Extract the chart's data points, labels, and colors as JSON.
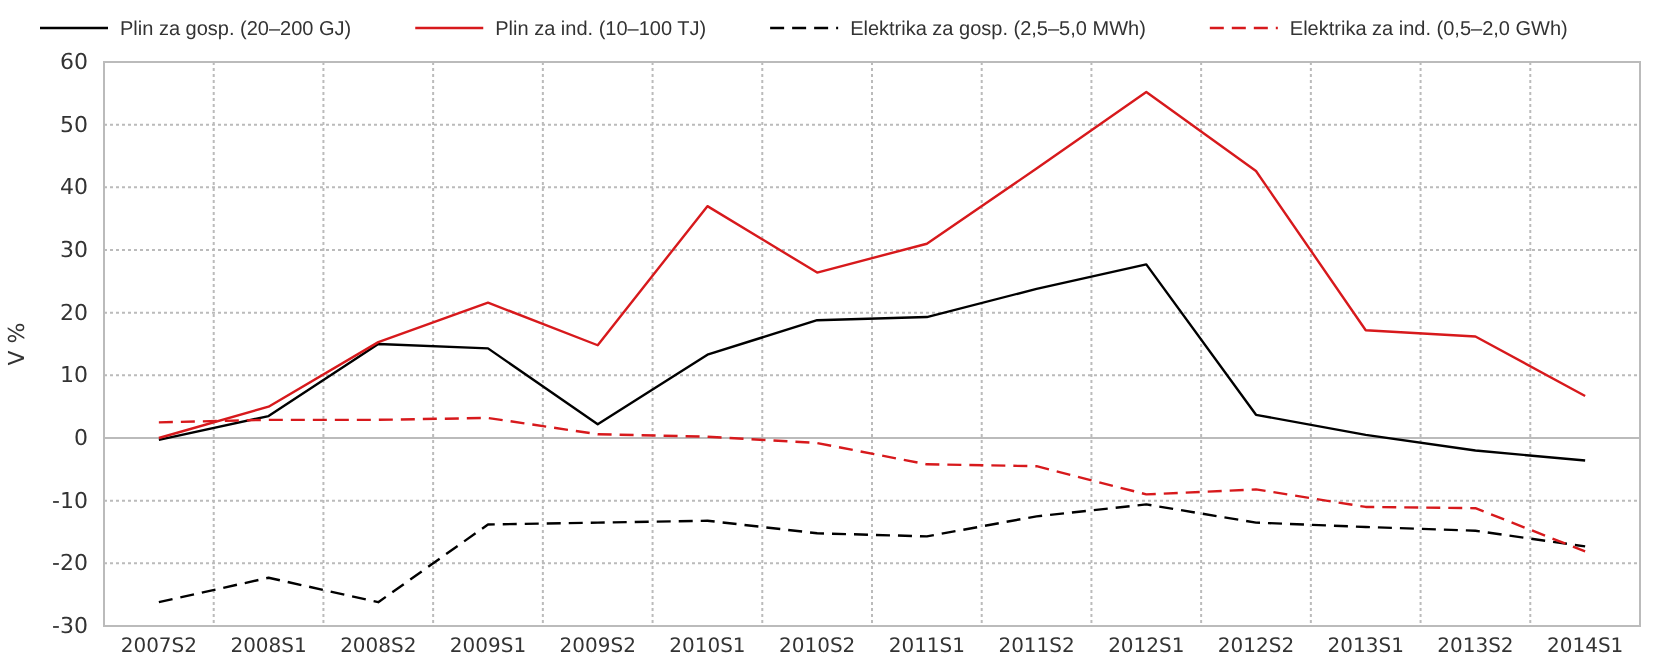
{
  "chart_data": {
    "type": "line",
    "ylabel": "V %",
    "categories": [
      "2007S2",
      "2008S1",
      "2008S2",
      "2009S1",
      "2009S2",
      "2010S1",
      "2010S2",
      "2011S1",
      "2011S2",
      "2012S1",
      "2012S2",
      "2013S1",
      "2013S2",
      "2014S1"
    ],
    "series": [
      {
        "name": "Plin za gosp. (20–200 GJ)",
        "color": "#000000",
        "line_style": "solid",
        "values": [
          -0.3,
          3.5,
          15,
          14.3,
          2.2,
          13.3,
          18.8,
          19.3,
          23.8,
          27.7,
          3.7,
          0.5,
          -2,
          -3.6
        ]
      },
      {
        "name": "Plin za ind. (10–100 TJ)",
        "color": "#d7191c",
        "line_style": "solid",
        "values": [
          0,
          5,
          15.3,
          21.6,
          14.8,
          37,
          26.4,
          31,
          43,
          55.2,
          42.6,
          17.2,
          16.2,
          6.7
        ]
      },
      {
        "name": "Elektrika za gosp. (2,5–5,0 MWh)",
        "color": "#000000",
        "line_style": "dashed",
        "values": [
          -26.2,
          -22.3,
          -26.2,
          -13.8,
          -13.5,
          -13.2,
          -15.2,
          -15.7,
          -12.5,
          -10.6,
          -13.5,
          -14.2,
          -14.8,
          -17.3
        ]
      },
      {
        "name": "Elektrika za ind. (0,5–2,0 GWh)",
        "color": "#d7191c",
        "line_style": "dashed",
        "values": [
          2.5,
          2.9,
          2.9,
          3.2,
          0.6,
          0.2,
          -0.8,
          -4.2,
          -4.5,
          -9,
          -8.2,
          -11,
          -11.2,
          -18.1
        ]
      }
    ],
    "ylim": [
      -30,
      60
    ],
    "yticks": [
      -30,
      -20,
      -10,
      0,
      10,
      20,
      30,
      40,
      50,
      60
    ],
    "grid": true,
    "legend": "top",
    "marker": "none"
  }
}
